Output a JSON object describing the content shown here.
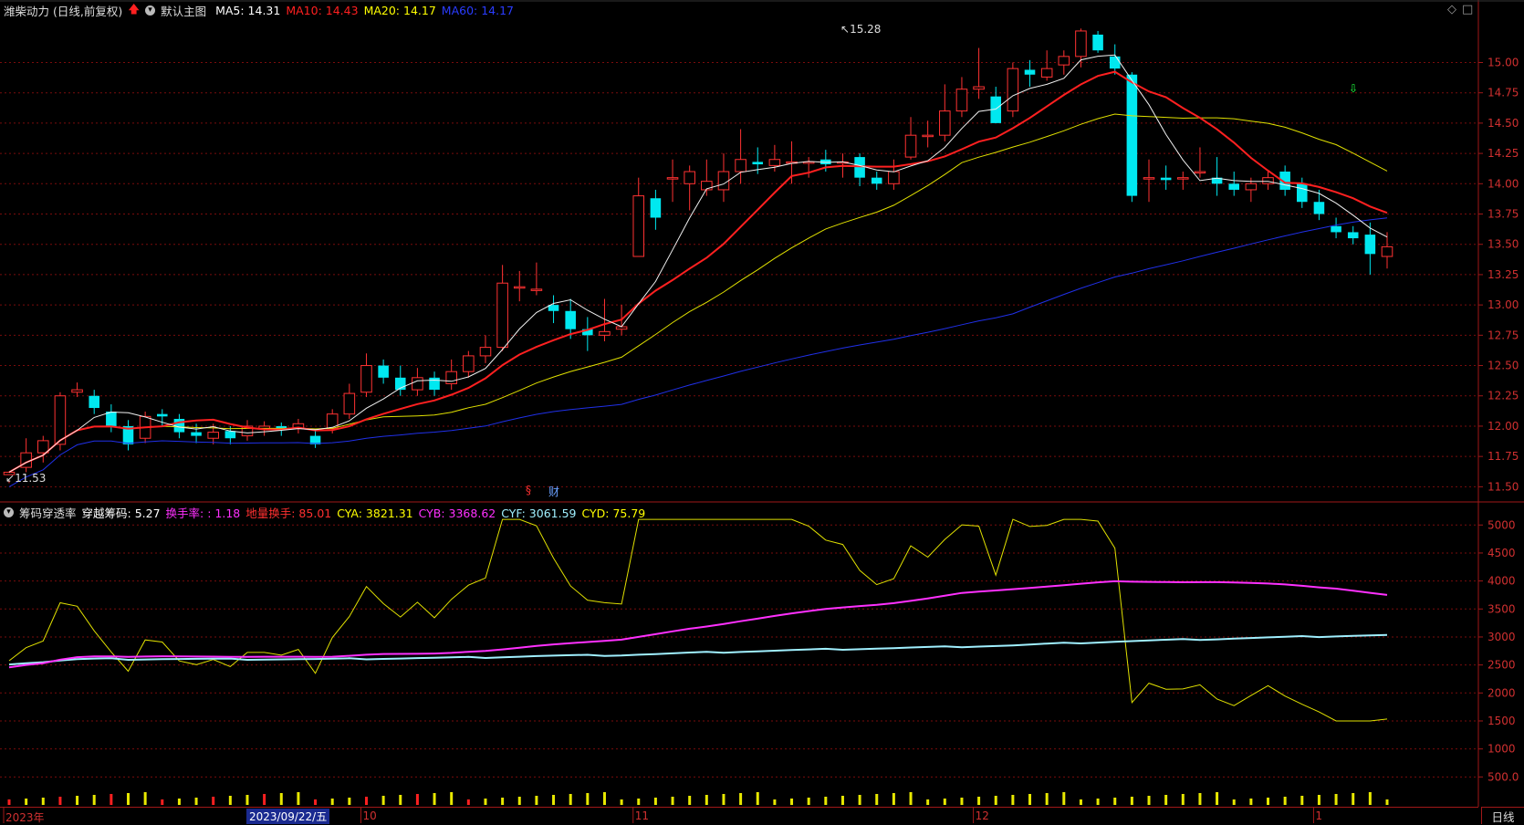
{
  "header": {
    "title": "潍柴动力 (日线,前复权)",
    "template": "默认主图",
    "indicators": [
      {
        "label": "MA5: 14.31",
        "color": "#ffffff"
      },
      {
        "label": "MA10: 14.43",
        "color": "#ff2020"
      },
      {
        "label": "MA20: 14.17",
        "color": "#ffff00"
      },
      {
        "label": "MA60: 14.17",
        "color": "#2a3cff"
      }
    ]
  },
  "sub_header": {
    "name": "筹码穿透率",
    "items": [
      {
        "label": "穿越筹码: 5.27",
        "color": "#ffffff"
      },
      {
        "label": "换手率: : 1.18",
        "color": "#ff30ff"
      },
      {
        "label": "地量换手: 85.01",
        "color": "#ff3030"
      },
      {
        "label": "CYA: 3821.31",
        "color": "#ffff00"
      },
      {
        "label": "CYB: 3368.62",
        "color": "#ff30ff"
      },
      {
        "label": "CYF: 3061.59",
        "color": "#a0f0ff"
      },
      {
        "label": "CYD: 75.79",
        "color": "#ffff00"
      }
    ]
  },
  "markers": {
    "high": "15.28",
    "low": "11.53",
    "s": "§",
    "cai": "财"
  },
  "x_axis": {
    "labels": [
      {
        "text": "2023年",
        "idx": 0
      },
      {
        "text": "10",
        "idx": 21
      },
      {
        "text": "11",
        "idx": 37
      },
      {
        "text": "12",
        "idx": 57
      },
      {
        "text": "1",
        "idx": 77
      }
    ],
    "cursor_date": "2023/09/22/五",
    "period": "日线"
  },
  "colors": {
    "up": "#ff3232",
    "down": "#00e8f0",
    "grid": "#7a0c0c",
    "axis": "#a01818"
  },
  "chart_data": [
    {
      "type": "candlestick",
      "title": "潍柴动力 (日线,前复权)",
      "y_ticks": [
        15.0,
        14.75,
        14.5,
        14.25,
        14.0,
        13.75,
        13.5,
        13.25,
        13.0,
        12.75,
        12.5,
        12.25,
        12.0,
        11.75,
        11.5
      ],
      "ylim": [
        11.45,
        15.35
      ],
      "candles": [
        [
          11.6,
          11.62,
          11.55,
          11.53
        ],
        [
          11.66,
          11.78,
          11.9,
          11.62
        ],
        [
          11.78,
          11.88,
          11.92,
          11.7
        ],
        [
          11.85,
          12.25,
          12.28,
          11.8
        ],
        [
          12.28,
          12.3,
          12.36,
          12.24
        ],
        [
          12.25,
          12.15,
          12.3,
          12.1
        ],
        [
          12.12,
          12.0,
          12.18,
          11.95
        ],
        [
          12.0,
          11.85,
          12.05,
          11.8
        ],
        [
          11.9,
          12.08,
          12.12,
          11.86
        ],
        [
          12.1,
          12.08,
          12.14,
          12.0
        ],
        [
          12.06,
          11.95,
          12.1,
          11.9
        ],
        [
          11.95,
          11.92,
          12.02,
          11.86
        ],
        [
          11.9,
          11.95,
          12.02,
          11.85
        ],
        [
          11.96,
          11.9,
          12.0,
          11.85
        ],
        [
          11.92,
          12.0,
          12.05,
          11.88
        ],
        [
          11.98,
          12.0,
          12.04,
          11.92
        ],
        [
          12.0,
          11.98,
          12.03,
          11.92
        ],
        [
          11.98,
          12.02,
          12.06,
          11.94
        ],
        [
          11.92,
          11.85,
          11.98,
          11.82
        ],
        [
          11.98,
          12.1,
          12.14,
          11.94
        ],
        [
          12.1,
          12.27,
          12.35,
          12.06
        ],
        [
          12.28,
          12.5,
          12.6,
          12.24
        ],
        [
          12.5,
          12.4,
          12.55,
          12.35
        ],
        [
          12.4,
          12.3,
          12.5,
          12.25
        ],
        [
          12.3,
          12.4,
          12.48,
          12.25
        ],
        [
          12.4,
          12.3,
          12.45,
          12.25
        ],
        [
          12.35,
          12.45,
          12.55,
          12.3
        ],
        [
          12.45,
          12.58,
          12.62,
          12.4
        ],
        [
          12.58,
          12.65,
          12.75,
          12.52
        ],
        [
          12.65,
          13.18,
          13.33,
          12.62
        ],
        [
          13.15,
          13.15,
          13.28,
          13.03
        ],
        [
          13.13,
          13.13,
          13.35,
          13.08
        ],
        [
          13.0,
          12.95,
          13.08,
          12.85
        ],
        [
          12.95,
          12.8,
          13.05,
          12.72
        ],
        [
          12.8,
          12.75,
          12.9,
          12.62
        ],
        [
          12.75,
          12.78,
          13.05,
          12.7
        ],
        [
          12.8,
          12.82,
          13.0,
          12.75
        ],
        [
          13.4,
          13.9,
          14.05,
          13.45
        ],
        [
          13.88,
          13.72,
          13.95,
          13.62
        ],
        [
          14.05,
          14.05,
          14.2,
          13.85
        ],
        [
          14.0,
          14.1,
          14.15,
          13.78
        ],
        [
          13.95,
          14.02,
          14.2,
          13.9
        ],
        [
          13.95,
          14.1,
          14.25,
          13.85
        ],
        [
          14.1,
          14.2,
          14.45,
          14.0
        ],
        [
          14.18,
          14.16,
          14.3,
          14.08
        ],
        [
          14.15,
          14.2,
          14.32,
          14.1
        ],
        [
          14.18,
          14.18,
          14.35,
          14.0
        ],
        [
          14.18,
          14.18,
          14.22,
          14.05
        ],
        [
          14.2,
          14.16,
          14.28,
          14.1
        ],
        [
          14.18,
          14.18,
          14.25,
          14.05
        ],
        [
          14.22,
          14.05,
          14.25,
          13.98
        ],
        [
          14.05,
          14.0,
          14.1,
          13.95
        ],
        [
          14.0,
          14.1,
          14.2,
          13.95
        ],
        [
          14.22,
          14.4,
          14.55,
          14.2
        ],
        [
          14.4,
          14.4,
          14.52,
          14.3
        ],
        [
          14.4,
          14.6,
          14.82,
          14.35
        ],
        [
          14.6,
          14.78,
          14.88,
          14.55
        ],
        [
          14.78,
          14.8,
          15.12,
          14.7
        ],
        [
          14.72,
          14.5,
          14.8,
          14.5
        ],
        [
          14.6,
          14.95,
          15.0,
          14.55
        ],
        [
          14.94,
          14.9,
          15.02,
          14.8
        ],
        [
          14.88,
          14.95,
          15.1,
          14.85
        ],
        [
          14.98,
          15.05,
          15.1,
          14.9
        ],
        [
          15.05,
          15.26,
          15.28,
          14.96
        ],
        [
          15.23,
          15.1,
          15.26,
          15.08
        ],
        [
          15.05,
          14.95,
          15.15,
          14.9
        ],
        [
          14.9,
          13.9,
          14.92,
          13.85
        ],
        [
          14.05,
          14.05,
          14.2,
          13.85
        ],
        [
          14.05,
          14.03,
          14.15,
          13.95
        ],
        [
          14.05,
          14.05,
          14.1,
          13.95
        ],
        [
          14.1,
          14.1,
          14.3,
          14.05
        ],
        [
          14.05,
          14.0,
          14.22,
          13.9
        ],
        [
          14.0,
          13.95,
          14.1,
          13.9
        ],
        [
          13.95,
          14.0,
          14.05,
          13.85
        ],
        [
          14.0,
          14.05,
          14.1,
          13.95
        ],
        [
          14.1,
          13.95,
          14.15,
          13.9
        ],
        [
          14.0,
          13.85,
          14.05,
          13.8
        ],
        [
          13.85,
          13.75,
          13.95,
          13.7
        ],
        [
          13.65,
          13.6,
          13.72,
          13.55
        ],
        [
          13.6,
          13.55,
          13.65,
          13.5
        ],
        [
          13.58,
          13.42,
          13.68,
          13.25
        ],
        [
          13.4,
          13.48,
          13.6,
          13.3
        ]
      ]
    },
    {
      "type": "line",
      "title": "筹码穿透率",
      "y_ticks": [
        5000,
        4500,
        4000,
        3500,
        3000,
        2500,
        2000,
        1500,
        1000,
        500
      ],
      "ylim": [
        0,
        5200
      ],
      "series": [
        {
          "name": "CYA",
          "color": "#ffff00"
        },
        {
          "name": "CYB",
          "color": "#ff30ff"
        },
        {
          "name": "CYF",
          "color": "#a0f0ff"
        }
      ]
    }
  ]
}
